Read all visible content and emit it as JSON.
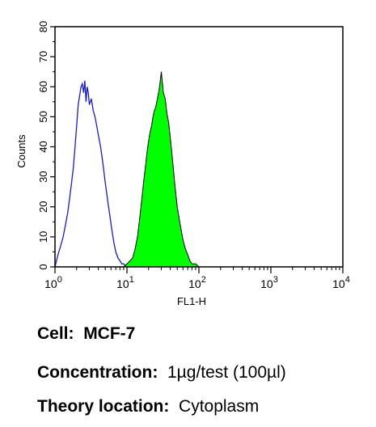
{
  "chart_data": {
    "type": "area",
    "title": "",
    "xlabel": "FL1-H",
    "ylabel": "Counts",
    "x_scale": "log",
    "xlim": [
      1,
      10000
    ],
    "ylim": [
      0,
      80
    ],
    "x_ticks": [
      {
        "base": "10",
        "exp": "0"
      },
      {
        "base": "10",
        "exp": "1"
      },
      {
        "base": "10",
        "exp": "2"
      },
      {
        "base": "10",
        "exp": "3"
      },
      {
        "base": "10",
        "exp": "4"
      }
    ],
    "y_ticks": [
      "0",
      "10",
      "20",
      "30",
      "40",
      "50",
      "60",
      "70",
      "80"
    ],
    "grid": false,
    "series": [
      {
        "style": "outline",
        "color": "#1a1adc",
        "x": [
          1.0,
          1.1,
          1.2,
          1.3,
          1.4,
          1.5,
          1.6,
          1.7,
          1.8,
          1.9,
          2.0,
          2.1,
          2.2,
          2.3,
          2.4,
          2.5,
          2.6,
          2.7,
          2.8,
          2.9,
          3.0,
          3.2,
          3.4,
          3.6,
          3.8,
          4.0,
          4.3,
          4.6,
          5.0,
          5.4,
          5.8,
          6.2,
          6.6,
          7.0,
          7.5,
          8.0,
          8.5,
          9.0,
          10.0,
          11.0
        ],
        "y": [
          0,
          4,
          7,
          10,
          14,
          18,
          23,
          28,
          33,
          40,
          47,
          54,
          57,
          60,
          61,
          58,
          62,
          55,
          60,
          58,
          54,
          56,
          52,
          50,
          47,
          44,
          40,
          35,
          28,
          22,
          17,
          12,
          8,
          5,
          3,
          2,
          1,
          1,
          0,
          0
        ]
      },
      {
        "style": "filled",
        "color": "#00ff00",
        "x": [
          1,
          2,
          3,
          4,
          5,
          6,
          7,
          8,
          9,
          10,
          11,
          12,
          13,
          14,
          15,
          16,
          17,
          18,
          19,
          20,
          21,
          22,
          23,
          24,
          25,
          26,
          27,
          28,
          29,
          30,
          32,
          34,
          36,
          38,
          40,
          42,
          44,
          46,
          48,
          50,
          55,
          60,
          65,
          70,
          75,
          80,
          90,
          100,
          120,
          150,
          200,
          10000
        ],
        "y": [
          0,
          0,
          0,
          0,
          0,
          0,
          0,
          0,
          0,
          1,
          2,
          3,
          6,
          10,
          16,
          22,
          28,
          33,
          38,
          42,
          45,
          47,
          50,
          52,
          53,
          55,
          57,
          59,
          62,
          65,
          58,
          56,
          51,
          48,
          43,
          38,
          33,
          28,
          24,
          20,
          14,
          9,
          6,
          4,
          2,
          1,
          1,
          0,
          0,
          0,
          0,
          0
        ]
      }
    ],
    "plot_color": "#00ff00"
  },
  "captions": {
    "cell_label": "Cell:",
    "cell_value": "MCF-7",
    "concentration_label": "Concentration:",
    "concentration_value": "1µg/test (100µl)",
    "theory_label": "Theory location:",
    "theory_value": "Cytoplasm"
  }
}
